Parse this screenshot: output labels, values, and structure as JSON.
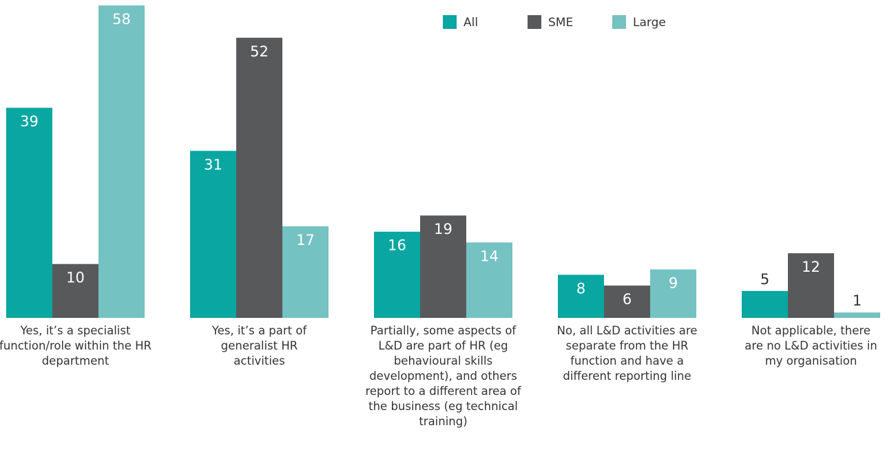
{
  "chart_data": {
    "type": "bar",
    "categories": [
      "Yes, it’s a specialist function/role within the HR department",
      "Yes, it’s a part of generalist HR activities",
      "Partially, some aspects of L&D are part of HR (eg behavioural skills development), and others report to a different area of the business (eg technical training)",
      "No, all L&D activities are separate from the HR function and have a different reporting line",
      "Not applicable, there are no L&D activities in my organisation"
    ],
    "series": [
      {
        "name": "All",
        "color": "#0aa6a2",
        "values": [
          39,
          31,
          16,
          8,
          5
        ]
      },
      {
        "name": "SME",
        "color": "#58595b",
        "values": [
          10,
          52,
          19,
          6,
          12
        ]
      },
      {
        "name": "Large",
        "color": "#74c2c1",
        "values": [
          58,
          17,
          14,
          9,
          1
        ]
      }
    ]
  }
}
